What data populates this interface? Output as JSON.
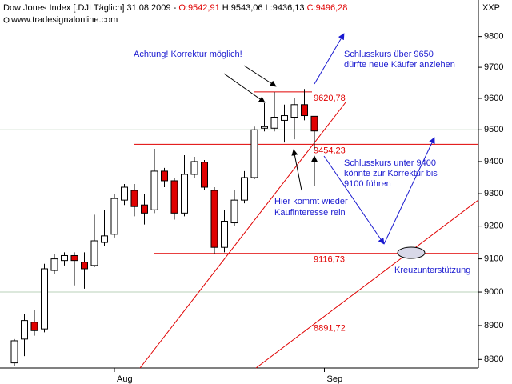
{
  "chart_data": {
    "type": "candlestick",
    "header": {
      "name": "Dow Jones Index [.DJI  Täglich] 31.08.2009 -",
      "open": "O:9542,91",
      "high": "H:9543,06",
      "low": "L:9436,13",
      "close": "C:9496,28"
    },
    "source": "www.tradesignalonline.com",
    "corner_label": "XXP",
    "categories": [
      null,
      null,
      null,
      null,
      null,
      null,
      null,
      null,
      null,
      null,
      null,
      null,
      null,
      null,
      null,
      null,
      null,
      null,
      null,
      null,
      null,
      null,
      null,
      null,
      null,
      null,
      null,
      null,
      null,
      null,
      null
    ],
    "xticks": [
      {
        "value": 10,
        "label": "Aug"
      },
      {
        "value": 31,
        "label": "Sep"
      }
    ],
    "open": [
      8790,
      8860,
      8910,
      8890,
      9065,
      9095,
      9110,
      9090,
      9080,
      9150,
      9175,
      9280,
      9310,
      9265,
      9250,
      9370,
      9340,
      9240,
      9360,
      9398,
      9310,
      9135,
      9210,
      9280,
      9350,
      9505,
      9505,
      9530,
      9540,
      9580,
      9542.91
    ],
    "high": [
      8860,
      8935,
      8945,
      9085,
      9115,
      9120,
      9120,
      9120,
      9235,
      9250,
      9300,
      9330,
      9330,
      9300,
      9440,
      9380,
      9350,
      9420,
      9415,
      9405,
      9320,
      9250,
      9310,
      9370,
      9510,
      9585,
      9620,
      9580,
      9600,
      9630,
      9543.06
    ],
    "low": [
      8780,
      8810,
      8870,
      8880,
      9055,
      9080,
      9020,
      9010,
      9075,
      9140,
      9165,
      9265,
      9230,
      9205,
      9240,
      9320,
      9220,
      9230,
      9350,
      9310,
      9116,
      9120,
      9200,
      9270,
      9345,
      9495,
      9495,
      9460,
      9470,
      9530,
      9436.13
    ],
    "close": [
      8855,
      8915,
      8885,
      9070,
      9100,
      9110,
      9095,
      9070,
      9155,
      9170,
      9285,
      9320,
      9260,
      9240,
      9370,
      9340,
      9240,
      9360,
      9400,
      9320,
      9135,
      9215,
      9280,
      9350,
      9500,
      9510,
      9540,
      9545,
      9580,
      9545,
      9496.28
    ],
    "up_color": "#ffffff",
    "down_color": "#e00000",
    "ylim": [
      8775,
      9920
    ],
    "log_scale": true,
    "yticks": [
      8800,
      8900,
      9000,
      9100,
      9200,
      9300,
      9400,
      9500,
      9600,
      9700,
      9800
    ],
    "grid_lines": [
      9000,
      9500
    ],
    "levels": [
      {
        "value": 9620.78,
        "label": "9620,78"
      },
      {
        "value": 9454.23,
        "label": "9454,23"
      },
      {
        "value": 9116.73,
        "label": "9116,73"
      }
    ],
    "price_labels": [
      {
        "value": 8891.72,
        "label": "8891,72"
      }
    ],
    "level_color": "#e00000",
    "annotations": [
      "Achtung! Korrektur möglich!",
      "Schlusskurs über 9650",
      "dürfte  neue Käufer anziehen",
      "Schlusskurs unter 9400",
      "könnte zur Korrektur bis",
      "9100 führen",
      "Hier kommt wieder",
      "Kaufinteresse rein",
      "Kreuzunterstützung"
    ]
  }
}
